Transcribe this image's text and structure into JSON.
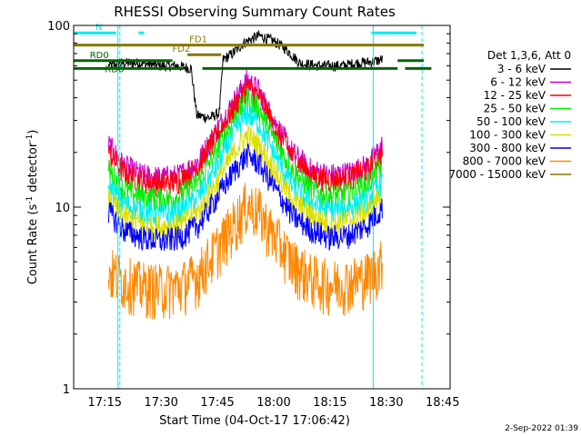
{
  "chart_data": {
    "type": "line",
    "title": "RHESSI Observing Summary Count Rates",
    "xlabel": "Start Time (04-Oct-17 17:06:42)",
    "ylabel_parts": [
      "Count Rate (s",
      "-1",
      " detector",
      "-1",
      ")"
    ],
    "yscale": "log",
    "xlim": [
      "17:06:42",
      "18:47:00"
    ],
    "ylim": [
      1,
      100
    ],
    "x_ticks": [
      "17:15",
      "17:30",
      "17:45",
      "18:00",
      "18:15",
      "18:30",
      "18:45"
    ],
    "y_ticks": [
      "1",
      "10",
      "100"
    ],
    "legend_title": "Det 1,3,6, Att 0",
    "legend_position": "right",
    "timestamp": "2-Sep-2022 01:39",
    "series": [
      {
        "name": "3 - 6 keV",
        "color": "#000000",
        "points": [
          [
            "17:16:00",
            60
          ],
          [
            "17:20:00",
            62
          ],
          [
            "17:25:00",
            62
          ],
          [
            "17:30:00",
            60
          ],
          [
            "17:34:00",
            60
          ],
          [
            "17:38:00",
            58
          ],
          [
            "17:39:30",
            32
          ],
          [
            "17:43:00",
            31
          ],
          [
            "17:45:30",
            33
          ],
          [
            "17:46:30",
            65
          ],
          [
            "17:49:00",
            70
          ],
          [
            "17:52:00",
            80
          ],
          [
            "17:56:00",
            88
          ],
          [
            "18:00:00",
            82
          ],
          [
            "18:03:00",
            75
          ],
          [
            "18:07:00",
            62
          ],
          [
            "18:12:00",
            60
          ],
          [
            "18:18:00",
            60
          ],
          [
            "18:22:00",
            62
          ],
          [
            "18:26:00",
            63
          ],
          [
            "18:29:00",
            65
          ]
        ]
      },
      {
        "name": "6 - 12 keV",
        "color": "#cc00cc",
        "points": [
          [
            "17:16:00",
            22
          ],
          [
            "17:20:00",
            17
          ],
          [
            "17:25:00",
            15
          ],
          [
            "17:30:00",
            14.5
          ],
          [
            "17:35:00",
            15
          ],
          [
            "17:40:00",
            18
          ],
          [
            "17:45:00",
            27
          ],
          [
            "17:50:00",
            40
          ],
          [
            "17:53:00",
            50
          ],
          [
            "17:56:00",
            44
          ],
          [
            "18:00:00",
            30
          ],
          [
            "18:05:00",
            20
          ],
          [
            "18:10:00",
            16
          ],
          [
            "18:15:00",
            15
          ],
          [
            "18:20:00",
            15.5
          ],
          [
            "18:25:00",
            17
          ],
          [
            "18:29:00",
            22
          ]
        ]
      },
      {
        "name": "12 - 25 keV",
        "color": "#ff0000",
        "points": [
          [
            "17:16:00",
            20
          ],
          [
            "17:20:00",
            15.5
          ],
          [
            "17:25:00",
            14
          ],
          [
            "17:30:00",
            13.5
          ],
          [
            "17:35:00",
            14
          ],
          [
            "17:40:00",
            17
          ],
          [
            "17:45:00",
            25
          ],
          [
            "17:50:00",
            37
          ],
          [
            "17:53:00",
            46
          ],
          [
            "17:56:00",
            41
          ],
          [
            "18:00:00",
            28
          ],
          [
            "18:05:00",
            19
          ],
          [
            "18:10:00",
            15
          ],
          [
            "18:15:00",
            14
          ],
          [
            "18:20:00",
            14.5
          ],
          [
            "18:25:00",
            16
          ],
          [
            "18:29:00",
            20
          ]
        ]
      },
      {
        "name": "25 - 50 keV",
        "color": "#00ee00",
        "points": [
          [
            "17:16:00",
            16
          ],
          [
            "17:20:00",
            12.5
          ],
          [
            "17:25:00",
            11.5
          ],
          [
            "17:30:00",
            11
          ],
          [
            "17:35:00",
            11.5
          ],
          [
            "17:40:00",
            14
          ],
          [
            "17:45:00",
            21
          ],
          [
            "17:50:00",
            32
          ],
          [
            "17:53:00",
            40
          ],
          [
            "17:56:00",
            35
          ],
          [
            "18:00:00",
            24
          ],
          [
            "18:05:00",
            16
          ],
          [
            "18:10:00",
            12.5
          ],
          [
            "18:15:00",
            11.5
          ],
          [
            "18:20:00",
            12
          ],
          [
            "18:25:00",
            13.5
          ],
          [
            "18:29:00",
            17
          ]
        ]
      },
      {
        "name": "50 - 100 keV",
        "color": "#00eeee",
        "points": [
          [
            "17:16:00",
            13
          ],
          [
            "17:20:00",
            10.5
          ],
          [
            "17:25:00",
            9.5
          ],
          [
            "17:30:00",
            9
          ],
          [
            "17:35:00",
            9.5
          ],
          [
            "17:40:00",
            11.5
          ],
          [
            "17:45:00",
            17
          ],
          [
            "17:50:00",
            27
          ],
          [
            "17:53:00",
            33
          ],
          [
            "17:56:00",
            29
          ],
          [
            "18:00:00",
            20
          ],
          [
            "18:05:00",
            13
          ],
          [
            "18:10:00",
            10.5
          ],
          [
            "18:15:00",
            9.5
          ],
          [
            "18:20:00",
            10
          ],
          [
            "18:25:00",
            11
          ],
          [
            "18:29:00",
            14
          ]
        ]
      },
      {
        "name": "100 - 300 keV",
        "color": "#dddd00",
        "points": [
          [
            "17:16:00",
            11
          ],
          [
            "17:20:00",
            9
          ],
          [
            "17:25:00",
            8
          ],
          [
            "17:30:00",
            7.8
          ],
          [
            "17:35:00",
            8
          ],
          [
            "17:40:00",
            9.5
          ],
          [
            "17:45:00",
            14
          ],
          [
            "17:50:00",
            21
          ],
          [
            "17:53:00",
            25
          ],
          [
            "17:56:00",
            22
          ],
          [
            "18:00:00",
            16
          ],
          [
            "18:05:00",
            11
          ],
          [
            "18:10:00",
            9
          ],
          [
            "18:15:00",
            8
          ],
          [
            "18:20:00",
            8.5
          ],
          [
            "18:25:00",
            9.5
          ],
          [
            "18:29:00",
            12
          ]
        ]
      },
      {
        "name": "300 - 800 keV",
        "color": "#0000ff",
        "points": [
          [
            "17:16:00",
            9.5
          ],
          [
            "17:20:00",
            7.5
          ],
          [
            "17:25:00",
            6.8
          ],
          [
            "17:30:00",
            6.5
          ],
          [
            "17:35:00",
            6.8
          ],
          [
            "17:40:00",
            8
          ],
          [
            "17:45:00",
            11.5
          ],
          [
            "17:50:00",
            16.5
          ],
          [
            "17:53:00",
            19.5
          ],
          [
            "17:56:00",
            17.5
          ],
          [
            "18:00:00",
            13
          ],
          [
            "18:05:00",
            9
          ],
          [
            "18:10:00",
            7.5
          ],
          [
            "18:15:00",
            6.8
          ],
          [
            "18:20:00",
            7
          ],
          [
            "18:25:00",
            8
          ],
          [
            "18:29:00",
            10
          ]
        ]
      },
      {
        "name": "800 - 7000 keV",
        "color": "#ff8800",
        "points": [
          [
            "17:16:00",
            4.5
          ],
          [
            "17:20:00",
            4
          ],
          [
            "17:25:00",
            3.7
          ],
          [
            "17:30:00",
            3.6
          ],
          [
            "17:35:00",
            3.7
          ],
          [
            "17:40:00",
            4.3
          ],
          [
            "17:45:00",
            6
          ],
          [
            "17:50:00",
            8.5
          ],
          [
            "17:53:00",
            10.5
          ],
          [
            "17:56:00",
            9.5
          ],
          [
            "18:00:00",
            7
          ],
          [
            "18:05:00",
            5
          ],
          [
            "18:10:00",
            4.1
          ],
          [
            "18:15:00",
            3.8
          ],
          [
            "18:20:00",
            3.9
          ],
          [
            "18:25:00",
            4.2
          ],
          [
            "18:29:00",
            5
          ]
        ]
      },
      {
        "name": "7000 - 15000 keV",
        "color": "#887700",
        "points": []
      }
    ],
    "annotations": [
      {
        "label": "N",
        "color": "#00eeee",
        "y": 91,
        "segments": [
          [
            "17:06:42",
            "17:18:00"
          ],
          [
            "17:24:00",
            "17:25:30"
          ],
          [
            "18:26:00",
            "18:38:00"
          ]
        ]
      },
      {
        "label": "FD1",
        "color": "#887700",
        "y": 78,
        "segments": [
          [
            "17:06:42",
            "18:40:00"
          ]
        ]
      },
      {
        "label": "FD2",
        "color": "#887700",
        "y": 69,
        "segments": [
          [
            "17:37:00",
            "17:46:00"
          ]
        ]
      },
      {
        "label": "RD0",
        "color": "#006600",
        "y": 64,
        "segments": [
          [
            "17:06:42",
            "17:33:00"
          ],
          [
            "18:33:00",
            "18:40:00"
          ]
        ]
      },
      {
        "label": "RD6",
        "color": "#006600",
        "y": 58,
        "segments": [
          [
            "17:06:42",
            "17:36:00"
          ],
          [
            "17:41:00",
            "18:33:00"
          ],
          [
            "18:35:00",
            "18:42:00"
          ]
        ]
      }
    ],
    "vertical_lines": [
      {
        "time": "17:06:42",
        "color": "#00eeee",
        "style": "solid"
      },
      {
        "time": "17:18:30",
        "color": "#00eeee",
        "style": "solid"
      },
      {
        "time": "17:19:00",
        "color": "#00eeee",
        "style": "dashed"
      },
      {
        "time": "18:26:30",
        "color": "#00eeee",
        "style": "solid"
      },
      {
        "time": "18:39:30",
        "color": "#00eeee",
        "style": "dashed"
      }
    ]
  }
}
